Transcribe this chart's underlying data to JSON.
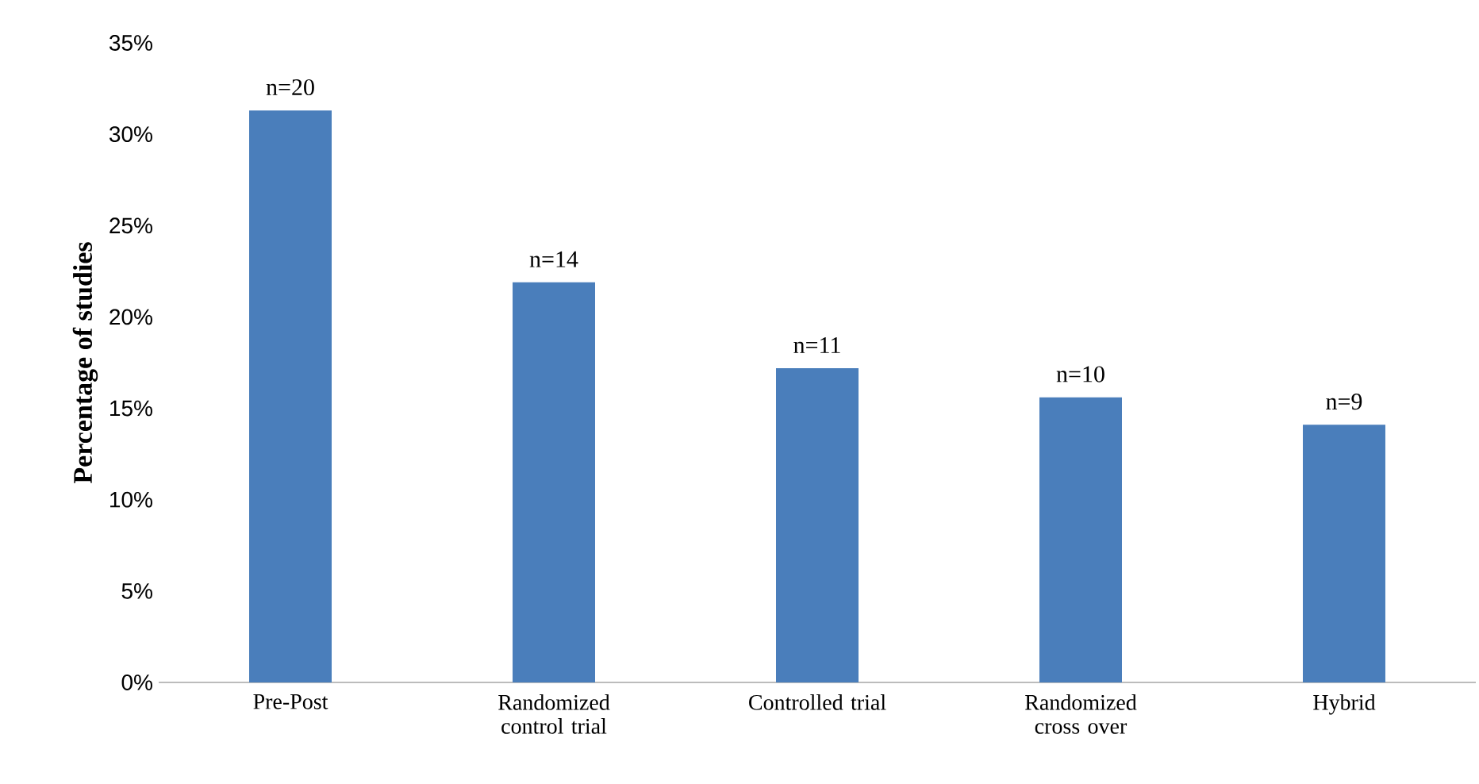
{
  "chart_data": {
    "type": "bar",
    "categories": [
      "Pre-Post",
      "Randomized control trial",
      "Controlled trial",
      "Randomized cross over",
      "Hybrid"
    ],
    "values": [
      31.3,
      21.9,
      17.2,
      15.6,
      14.1
    ],
    "annotations": [
      {
        "text": "n=20",
        "x": "Pre-Post",
        "y": 31.3
      },
      {
        "text": "n=14",
        "x": "Randomized control trial",
        "y": 21.9
      },
      {
        "text": "n=11",
        "x": "Controlled trial",
        "y": 17.2
      },
      {
        "text": "n=10",
        "x": "Randomized cross over",
        "y": 15.6
      },
      {
        "text": "n=9",
        "x": "Hybrid",
        "y": 14.1
      }
    ],
    "color": "#4a7ebb",
    "ylabel": "Percentage of studies",
    "ylim": [
      0,
      35
    ],
    "yticks": [
      {
        "value": 0,
        "label": "0%"
      },
      {
        "value": 5,
        "label": "5%"
      },
      {
        "value": 10,
        "label": "10%"
      },
      {
        "value": 15,
        "label": "15%"
      },
      {
        "value": 20,
        "label": "20%"
      },
      {
        "value": 25,
        "label": "25%"
      },
      {
        "value": 30,
        "label": "30%"
      },
      {
        "value": 35,
        "label": "35%"
      }
    ],
    "grid": false
  }
}
